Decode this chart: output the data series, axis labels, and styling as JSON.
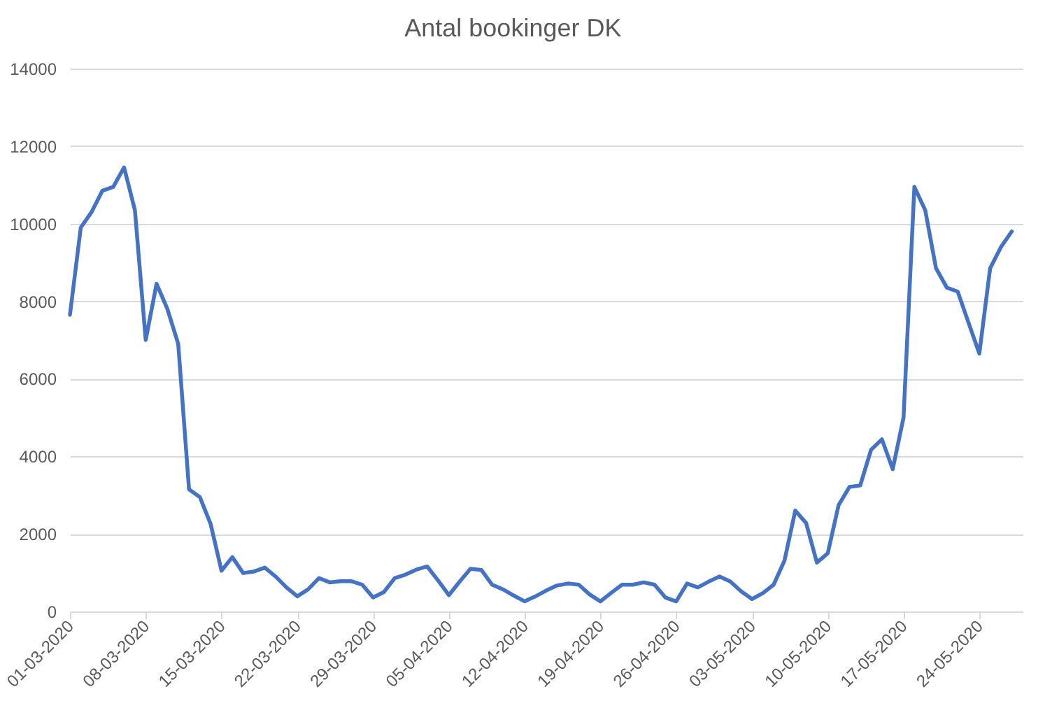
{
  "chart_data": {
    "type": "line",
    "title": "Antal bookinger DK",
    "x": [
      "2020-03-01",
      "2020-03-02",
      "2020-03-03",
      "2020-03-04",
      "2020-03-05",
      "2020-03-06",
      "2020-03-07",
      "2020-03-08",
      "2020-03-09",
      "2020-03-10",
      "2020-03-11",
      "2020-03-12",
      "2020-03-13",
      "2020-03-14",
      "2020-03-15",
      "2020-03-16",
      "2020-03-17",
      "2020-03-18",
      "2020-03-19",
      "2020-03-20",
      "2020-03-21",
      "2020-03-22",
      "2020-03-23",
      "2020-03-24",
      "2020-03-25",
      "2020-03-26",
      "2020-03-27",
      "2020-03-28",
      "2020-03-29",
      "2020-03-30",
      "2020-03-31",
      "2020-04-01",
      "2020-04-02",
      "2020-04-03",
      "2020-04-04",
      "2020-04-05",
      "2020-04-06",
      "2020-04-07",
      "2020-04-08",
      "2020-04-09",
      "2020-04-10",
      "2020-04-11",
      "2020-04-12",
      "2020-04-13",
      "2020-04-14",
      "2020-04-15",
      "2020-04-16",
      "2020-04-17",
      "2020-04-18",
      "2020-04-19",
      "2020-04-20",
      "2020-04-21",
      "2020-04-22",
      "2020-04-23",
      "2020-04-24",
      "2020-04-25",
      "2020-04-26",
      "2020-04-27",
      "2020-04-28",
      "2020-04-29",
      "2020-04-30",
      "2020-05-01",
      "2020-05-02",
      "2020-05-03",
      "2020-05-04",
      "2020-05-05",
      "2020-05-06",
      "2020-05-07",
      "2020-05-08",
      "2020-05-09",
      "2020-05-10",
      "2020-05-11",
      "2020-05-12",
      "2020-05-13",
      "2020-05-14",
      "2020-05-15",
      "2020-05-16",
      "2020-05-17",
      "2020-05-18",
      "2020-05-19",
      "2020-05-20",
      "2020-05-21",
      "2020-05-22",
      "2020-05-23",
      "2020-05-24",
      "2020-05-25",
      "2020-05-26",
      "2020-05-27"
    ],
    "series": [
      {
        "color": "#4472c4",
        "values": [
          7650,
          9900,
          10300,
          10850,
          10950,
          11450,
          10350,
          7000,
          8450,
          7800,
          6900,
          3150,
          2950,
          2250,
          1050,
          1400,
          990,
          1030,
          1130,
          900,
          620,
          390,
          570,
          860,
          750,
          780,
          780,
          690,
          360,
          500,
          860,
          950,
          1080,
          1160,
          800,
          420,
          770,
          1100,
          1070,
          690,
          570,
          410,
          260,
          390,
          540,
          670,
          720,
          690,
          440,
          260,
          480,
          690,
          690,
          750,
          690,
          360,
          260,
          720,
          620,
          770,
          900,
          770,
          520,
          320,
          470,
          690,
          1310,
          2600,
          2280,
          1260,
          1500,
          2740,
          3210,
          3250,
          4170,
          4440,
          3670,
          5000,
          10950,
          10350,
          8850,
          8350,
          8250,
          7450,
          6650,
          8850,
          9400,
          9800
        ]
      }
    ],
    "xlim": [
      "2020-03-01",
      "2020-05-28"
    ],
    "xticks": [
      {
        "value": "2020-03-01",
        "label": "01-03-2020"
      },
      {
        "value": "2020-03-08",
        "label": "08-03-2020"
      },
      {
        "value": "2020-03-15",
        "label": "15-03-2020"
      },
      {
        "value": "2020-03-22",
        "label": "22-03-2020"
      },
      {
        "value": "2020-03-29",
        "label": "29-03-2020"
      },
      {
        "value": "2020-04-05",
        "label": "05-04-2020"
      },
      {
        "value": "2020-04-12",
        "label": "12-04-2020"
      },
      {
        "value": "2020-04-19",
        "label": "19-04-2020"
      },
      {
        "value": "2020-04-26",
        "label": "26-04-2020"
      },
      {
        "value": "2020-05-03",
        "label": "03-05-2020"
      },
      {
        "value": "2020-05-10",
        "label": "10-05-2020"
      },
      {
        "value": "2020-05-17",
        "label": "17-05-2020"
      },
      {
        "value": "2020-05-24",
        "label": "24-05-2020"
      }
    ],
    "ylim": [
      0,
      14000
    ],
    "yticks": [
      0,
      2000,
      4000,
      6000,
      8000,
      10000,
      12000,
      14000
    ],
    "grid": "y",
    "line_style": "solid"
  }
}
